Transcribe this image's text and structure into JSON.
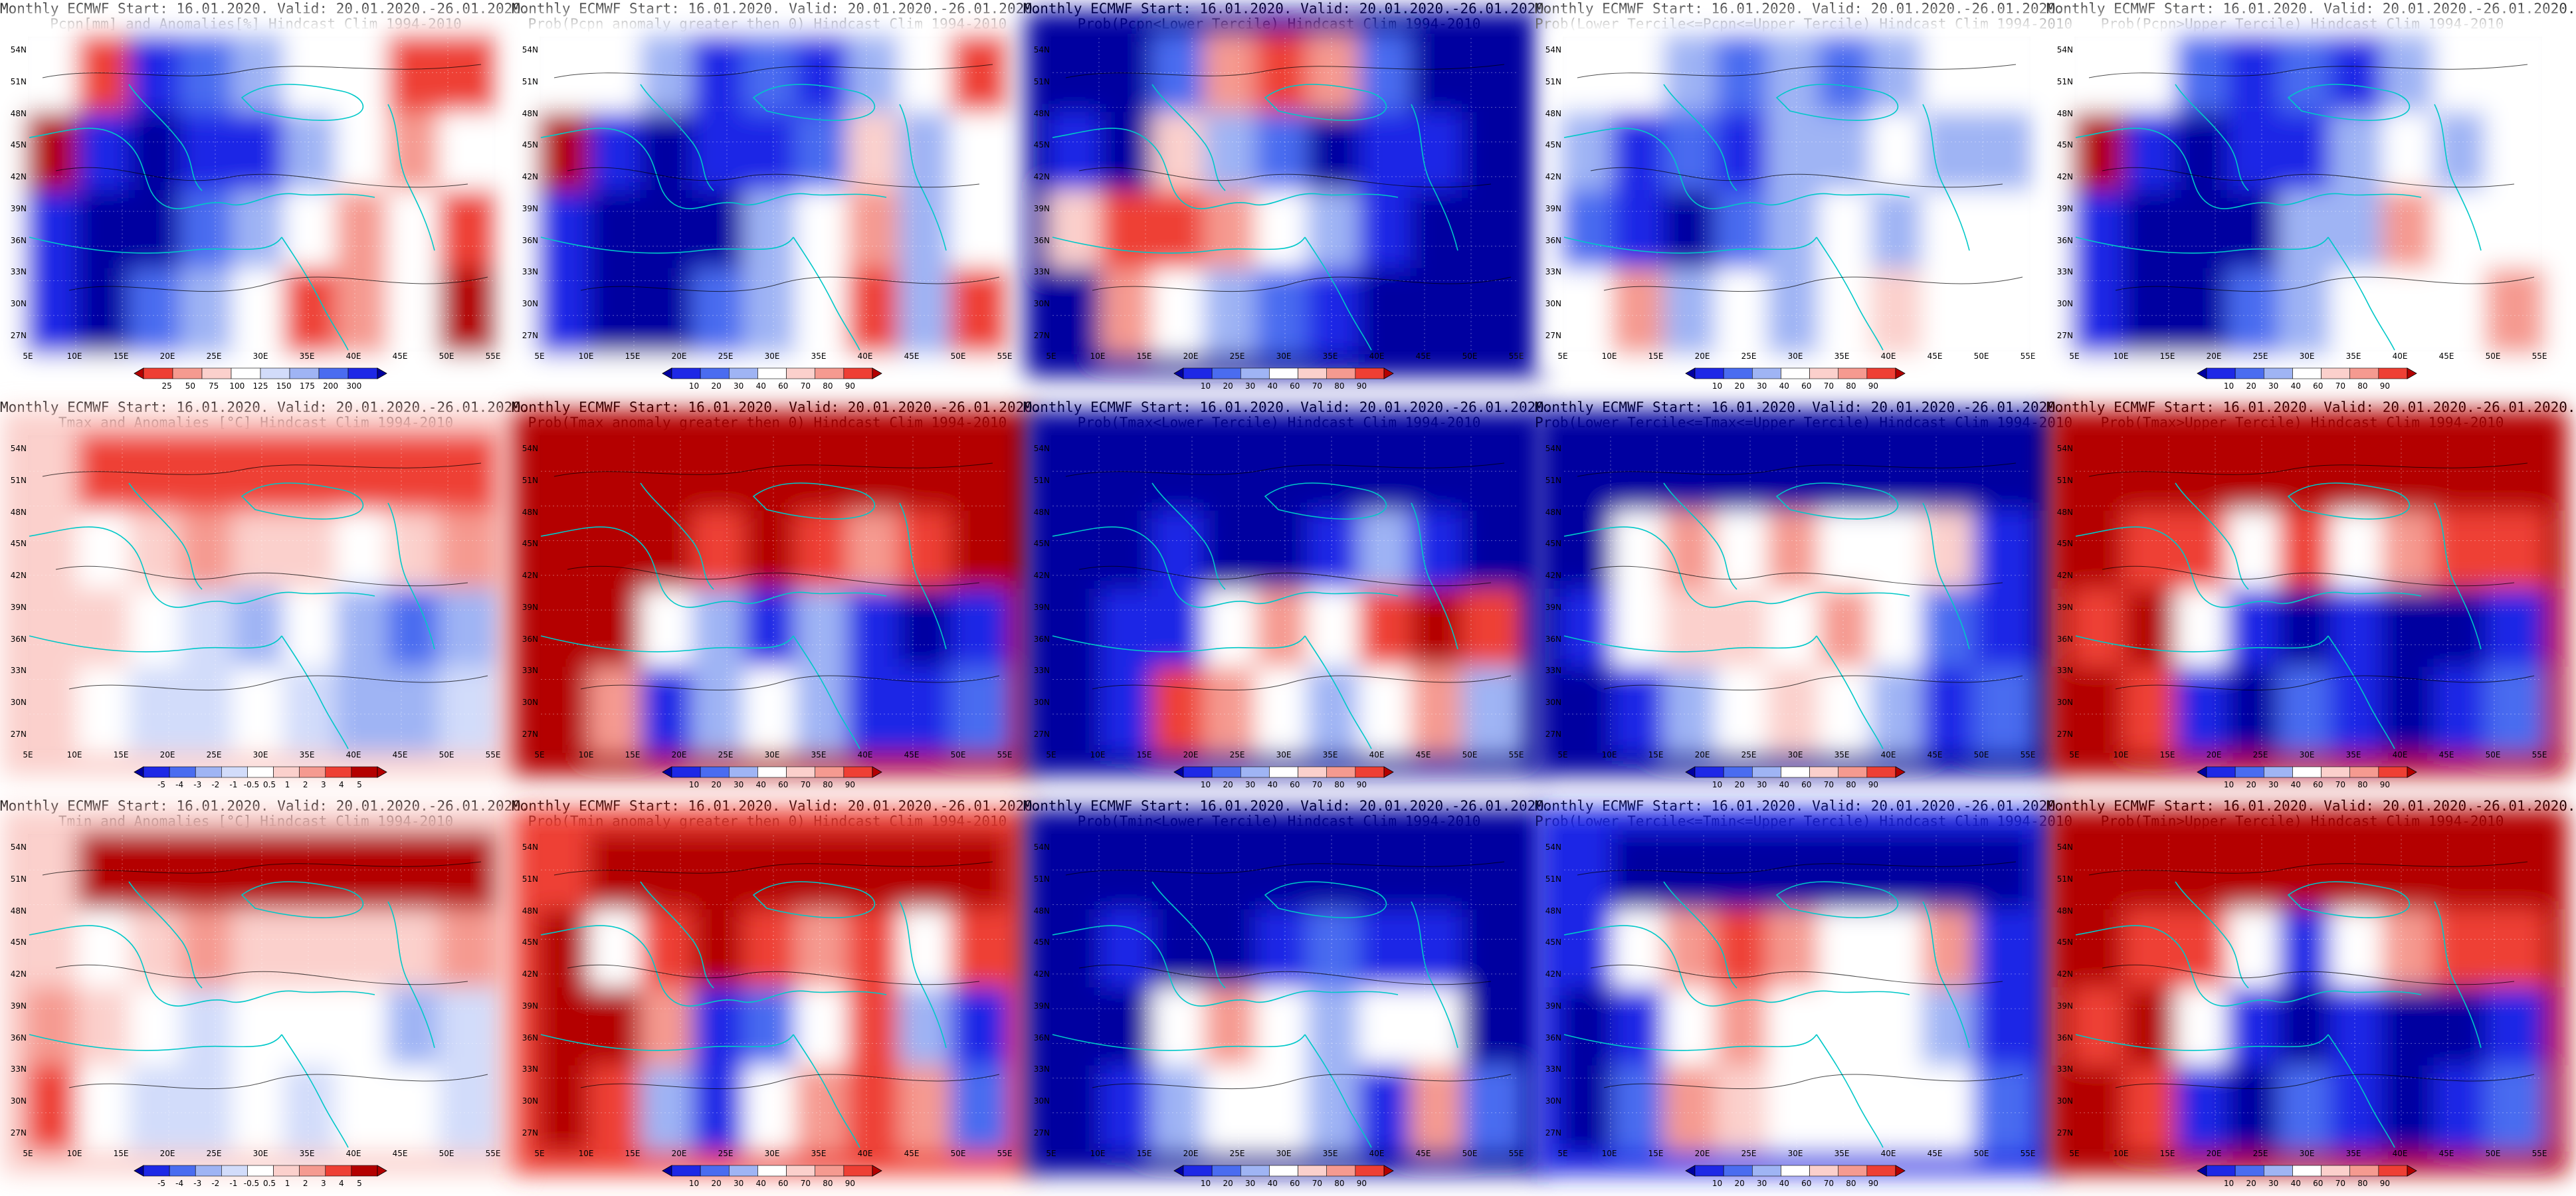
{
  "figure": {
    "columns": 5,
    "rows": 3,
    "lat_ticks": [
      "27N",
      "30N",
      "33N",
      "36N",
      "39N",
      "42N",
      "45N",
      "48N",
      "51N",
      "54N"
    ],
    "lon_ticks": [
      "5E",
      "10E",
      "15E",
      "20E",
      "25E",
      "30E",
      "35E",
      "40E",
      "45E",
      "50E",
      "55E"
    ],
    "colors": {
      "blue_dark": "#0000a0",
      "blue": "#1e28e6",
      "blue_mid": "#4a6cf0",
      "blue_light": "#9fb4f4",
      "blue_pale": "#d2dcfa",
      "white": "#ffffff",
      "red_pale": "#fbd0cc",
      "red_light": "#f59a90",
      "red": "#ee3f34",
      "red_dark": "#b40000",
      "coast": "#00c8c8",
      "contour": "#000000"
    }
  },
  "panels": [
    {
      "id": "pcpn-anom",
      "title1": "Monthly ECMWF Start: 16.01.2020. Valid: 20.01.2020.-26.01.2020.",
      "title2": "Pcpn[mm] and Anomalies[%] Hindcast Clim 1994-2010",
      "scheme": "anom_pcpn",
      "colorbar": [
        "25",
        "50",
        "75",
        "100",
        "125",
        "150",
        "175",
        "200",
        "300"
      ]
    },
    {
      "id": "pcpn-prob-gt0",
      "title1": "Monthly ECMWF Start: 16.01.2020. Valid: 20.01.2020.-26.01.2020.",
      "title2": "Prob(Pcpn anomaly greater then 0) Hindcast Clim 1994-2010",
      "scheme": "prob",
      "colorbar": [
        "10",
        "20",
        "30",
        "40",
        "60",
        "70",
        "80",
        "90"
      ]
    },
    {
      "id": "pcpn-prob-lower",
      "title1": "Monthly ECMWF Start: 16.01.2020. Valid: 20.01.2020.-26.01.2020.",
      "title2": "Prob(Pcpn<Lower Tercile) Hindcast Clim 1994-2010",
      "scheme": "prob",
      "colorbar": [
        "10",
        "20",
        "30",
        "40",
        "60",
        "70",
        "80",
        "90"
      ]
    },
    {
      "id": "pcpn-prob-middle",
      "title1": "Monthly ECMWF Start: 16.01.2020. Valid: 20.01.2020.-26.01.2020.",
      "title2": "Prob(Lower Tercile<=Pcpn<=Upper Tercile) Hindcast Clim 1994-2010",
      "scheme": "prob",
      "colorbar": [
        "10",
        "20",
        "30",
        "40",
        "60",
        "70",
        "80",
        "90"
      ]
    },
    {
      "id": "pcpn-prob-upper",
      "title1": "Monthly ECMWF Start: 16.01.2020. Valid: 20.01.2020.-26.01.2020.",
      "title2": "Prob(Pcpn>Upper Tercile) Hindcast Clim 1994-2010",
      "scheme": "prob",
      "colorbar": [
        "10",
        "20",
        "30",
        "40",
        "60",
        "70",
        "80",
        "90"
      ]
    },
    {
      "id": "tmax-anom",
      "title1": "Monthly ECMWF Start: 16.01.2020. Valid: 20.01.2020.-26.01.2020.",
      "title2": "Tmax and Anomalies [°C] Hindcast Clim 1994-2010",
      "scheme": "anom_temp",
      "colorbar": [
        "-5",
        "-4",
        "-3",
        "-2",
        "-1",
        "-0.5",
        "0.5",
        "1",
        "2",
        "3",
        "4",
        "5"
      ]
    },
    {
      "id": "tmax-prob-gt0",
      "title1": "Monthly ECMWF Start: 16.01.2020. Valid: 20.01.2020.-26.01.2020.",
      "title2": "Prob(Tmax anomaly greater then 0) Hindcast Clim 1994-2010",
      "scheme": "prob",
      "colorbar": [
        "10",
        "20",
        "30",
        "40",
        "60",
        "70",
        "80",
        "90"
      ]
    },
    {
      "id": "tmax-prob-lower",
      "title1": "Monthly ECMWF Start: 16.01.2020. Valid: 20.01.2020.-26.01.2020.",
      "title2": "Prob(Tmax<Lower Tercile) Hindcast Clim 1994-2010",
      "scheme": "prob",
      "colorbar": [
        "10",
        "20",
        "30",
        "40",
        "60",
        "70",
        "80",
        "90"
      ]
    },
    {
      "id": "tmax-prob-middle",
      "title1": "Monthly ECMWF Start: 16.01.2020. Valid: 20.01.2020.-26.01.2020.",
      "title2": "Prob(Lower Tercile<=Tmax<=Upper Tercile) Hindcast Clim 1994-2010",
      "scheme": "prob",
      "colorbar": [
        "10",
        "20",
        "30",
        "40",
        "60",
        "70",
        "80",
        "90"
      ]
    },
    {
      "id": "tmax-prob-upper",
      "title1": "Monthly ECMWF Start: 16.01.2020. Valid: 20.01.2020.-26.01.2020.",
      "title2": "Prob(Tmax>Upper Tercile) Hindcast Clim 1994-2010",
      "scheme": "prob",
      "colorbar": [
        "10",
        "20",
        "30",
        "40",
        "60",
        "70",
        "80",
        "90"
      ]
    },
    {
      "id": "tmin-anom",
      "title1": "Monthly ECMWF Start: 16.01.2020. Valid: 20.01.2020.-26.01.2020.",
      "title2": "Tmin and Anomalies [°C] Hindcast Clim 1994-2010",
      "scheme": "anom_temp",
      "colorbar": [
        "-5",
        "-4",
        "-3",
        "-2",
        "-1",
        "-0.5",
        "0.5",
        "1",
        "2",
        "3",
        "4",
        "5"
      ]
    },
    {
      "id": "tmin-prob-gt0",
      "title1": "Monthly ECMWF Start: 16.01.2020. Valid: 20.01.2020.-26.01.2020.",
      "title2": "Prob(Tmin anomaly greater then 0) Hindcast Clim 1994-2010",
      "scheme": "prob",
      "colorbar": [
        "10",
        "20",
        "30",
        "40",
        "60",
        "70",
        "80",
        "90"
      ]
    },
    {
      "id": "tmin-prob-lower",
      "title1": "Monthly ECMWF Start: 16.01.2020. Valid: 20.01.2020.-26.01.2020.",
      "title2": "Prob(Tmin<Lower Tercile) Hindcast Clim 1994-2010",
      "scheme": "prob",
      "colorbar": [
        "10",
        "20",
        "30",
        "40",
        "60",
        "70",
        "80",
        "90"
      ]
    },
    {
      "id": "tmin-prob-middle",
      "title1": "Monthly ECMWF Start: 16.01.2020. Valid: 20.01.2020.-26.01.2020.",
      "title2": "Prob(Lower Tercile<=Tmin<=Upper Tercile) Hindcast Clim 1994-2010",
      "scheme": "prob",
      "colorbar": [
        "10",
        "20",
        "30",
        "40",
        "60",
        "70",
        "80",
        "90"
      ]
    },
    {
      "id": "tmin-prob-upper",
      "title1": "Monthly ECMWF Start: 16.01.2020. Valid: 20.01.2020.-26.01.2020.",
      "title2": "Prob(Tmin>Upper Tercile) Hindcast Clim 1994-2010",
      "scheme": "prob",
      "colorbar": [
        "10",
        "20",
        "30",
        "40",
        "60",
        "70",
        "80",
        "90"
      ]
    }
  ],
  "fields": {
    "pcpn-anom": [
      [
        "white",
        "red",
        "blue",
        "blue_mid",
        "blue_light",
        "white",
        "white",
        "red",
        "red"
      ],
      [
        "red_dark",
        "blue",
        "blue_dark",
        "blue",
        "blue",
        "blue_light",
        "white",
        "red_light",
        "white"
      ],
      [
        "blue",
        "blue_dark",
        "blue_dark",
        "blue_mid",
        "blue_light",
        "white",
        "red_light",
        "white",
        "red"
      ],
      [
        "blue",
        "blue_dark",
        "blue_mid",
        "blue_light",
        "white",
        "red",
        "red_light",
        "white",
        "red_dark"
      ]
    ],
    "pcpn-prob-gt0": [
      [
        "white",
        "white",
        "blue_light",
        "blue",
        "blue_mid",
        "blue",
        "blue_light",
        "white",
        "red"
      ],
      [
        "red_dark",
        "blue",
        "blue_dark",
        "blue",
        "blue",
        "blue_mid",
        "red_pale",
        "blue_light",
        "white"
      ],
      [
        "blue",
        "blue_dark",
        "blue_dark",
        "blue_dark",
        "blue_light",
        "white",
        "red_light",
        "blue_light",
        "white"
      ],
      [
        "blue",
        "blue_dark",
        "blue_dark",
        "blue_mid",
        "blue_light",
        "white",
        "red",
        "blue_light",
        "red"
      ]
    ],
    "pcpn-prob-lower": [
      [
        "blue_dark",
        "blue_dark",
        "blue_mid",
        "red_light",
        "red",
        "red_light",
        "blue_mid",
        "blue_dark",
        "blue_dark"
      ],
      [
        "blue",
        "blue_dark",
        "red_pale",
        "blue_light",
        "blue_mid",
        "blue_dark",
        "blue",
        "blue",
        "blue_dark"
      ],
      [
        "red_pale",
        "red",
        "red",
        "red_light",
        "white",
        "blue_light",
        "blue",
        "blue_dark",
        "blue_dark"
      ],
      [
        "blue_dark",
        "red_light",
        "white",
        "blue_light",
        "blue_mid",
        "blue",
        "blue_dark",
        "blue_dark",
        "blue_dark"
      ]
    ],
    "pcpn-prob-middle": [
      [
        "white",
        "white",
        "blue_light",
        "blue_mid",
        "blue_light",
        "blue_mid",
        "blue_light",
        "white",
        "white"
      ],
      [
        "blue_light",
        "blue",
        "blue_mid",
        "blue",
        "blue_light",
        "blue_light",
        "white",
        "blue_light",
        "blue_light"
      ],
      [
        "blue_mid",
        "blue",
        "blue_dark",
        "blue_mid",
        "blue_light",
        "white",
        "blue_light",
        "white",
        "white"
      ],
      [
        "white",
        "red_light",
        "blue_light",
        "white",
        "blue_light",
        "white",
        "red_pale",
        "white",
        "white"
      ]
    ],
    "pcpn-prob-upper": [
      [
        "white",
        "white",
        "blue_mid",
        "blue",
        "blue_mid",
        "blue",
        "blue_light",
        "white",
        "white"
      ],
      [
        "red_dark",
        "blue",
        "blue_dark",
        "blue",
        "blue",
        "blue_light",
        "white",
        "blue_light",
        "white"
      ],
      [
        "blue",
        "blue_dark",
        "blue_dark",
        "blue_dark",
        "blue_light",
        "blue_light",
        "red_light",
        "white",
        "white"
      ],
      [
        "blue",
        "blue_dark",
        "blue_dark",
        "blue_mid",
        "blue_light",
        "white",
        "white",
        "white",
        "red_light"
      ]
    ],
    "tmax-anom": [
      [
        "red_pale",
        "red",
        "red",
        "red",
        "red",
        "red",
        "red",
        "red",
        "red"
      ],
      [
        "red_pale",
        "white",
        "red_pale",
        "red_light",
        "red_pale",
        "red_pale",
        "white",
        "red_pale",
        "red_light"
      ],
      [
        "red_pale",
        "red_pale",
        "white",
        "blue_pale",
        "blue_light",
        "white",
        "blue_light",
        "blue_mid",
        "blue_light"
      ],
      [
        "red_pale",
        "white",
        "blue_pale",
        "blue_pale",
        "white",
        "blue_pale",
        "blue_light",
        "blue_light",
        "blue_pale"
      ]
    ],
    "tmax-prob-gt0": [
      [
        "red_dark",
        "red_dark",
        "red_dark",
        "red_dark",
        "red_dark",
        "red_dark",
        "red_dark",
        "red_dark",
        "red_dark"
      ],
      [
        "red_dark",
        "red_dark",
        "red_dark",
        "red",
        "red_dark",
        "red",
        "red_light",
        "red",
        "red_dark"
      ],
      [
        "red_dark",
        "red_dark",
        "white",
        "blue_light",
        "blue",
        "blue_light",
        "blue",
        "blue_dark",
        "blue"
      ],
      [
        "red_dark",
        "red_light",
        "blue",
        "blue_light",
        "white",
        "blue_light",
        "blue",
        "blue",
        "blue_mid"
      ]
    ],
    "tmax-prob-lower": [
      [
        "blue_dark",
        "blue_dark",
        "blue_dark",
        "blue_dark",
        "blue_dark",
        "blue_dark",
        "blue_dark",
        "blue_dark",
        "blue_dark"
      ],
      [
        "blue_dark",
        "blue_dark",
        "blue",
        "blue_dark",
        "blue_dark",
        "blue",
        "blue_light",
        "blue",
        "blue_dark"
      ],
      [
        "blue_dark",
        "blue",
        "blue",
        "white",
        "red_light",
        "white",
        "red",
        "red_dark",
        "red"
      ],
      [
        "blue_dark",
        "blue",
        "red",
        "red_light",
        "white",
        "blue_light",
        "white",
        "red_light",
        "blue_light"
      ]
    ],
    "tmax-prob-middle": [
      [
        "blue_dark",
        "blue_dark",
        "blue_dark",
        "blue_dark",
        "blue_dark",
        "blue_dark",
        "blue_dark",
        "blue_dark",
        "blue_dark"
      ],
      [
        "blue_dark",
        "white",
        "red_light",
        "white",
        "red_light",
        "white",
        "white",
        "red_pale",
        "blue"
      ],
      [
        "blue",
        "white",
        "red_pale",
        "red_pale",
        "white",
        "red_light",
        "white",
        "blue_mid",
        "blue"
      ],
      [
        "blue_dark",
        "blue",
        "blue_light",
        "white",
        "red_pale",
        "white",
        "blue_light",
        "blue",
        "blue_mid"
      ]
    ],
    "tmax-prob-upper": [
      [
        "red_dark",
        "red_dark",
        "red_dark",
        "red_dark",
        "red_dark",
        "red_dark",
        "red_dark",
        "red_dark",
        "red_dark"
      ],
      [
        "red_dark",
        "red",
        "red",
        "white",
        "red",
        "white",
        "red_light",
        "red",
        "red"
      ],
      [
        "red",
        "red_dark",
        "white",
        "blue",
        "blue_dark",
        "blue",
        "blue_dark",
        "blue_dark",
        "blue"
      ],
      [
        "red_dark",
        "red",
        "blue",
        "blue_dark",
        "blue_mid",
        "blue",
        "blue_dark",
        "blue",
        "blue_mid"
      ]
    ],
    "tmin-anom": [
      [
        "red_pale",
        "red_dark",
        "red_dark",
        "red_dark",
        "red_dark",
        "red_dark",
        "red_dark",
        "red_dark",
        "red_dark"
      ],
      [
        "red_pale",
        "white",
        "red_pale",
        "red_light",
        "red_pale",
        "red_pale",
        "red_pale",
        "red_pale",
        "red_light"
      ],
      [
        "red_light",
        "red_pale",
        "white",
        "blue_pale",
        "white",
        "white",
        "white",
        "blue_light",
        "blue_pale"
      ],
      [
        "red",
        "white",
        "blue_pale",
        "blue_pale",
        "white",
        "blue_pale",
        "white",
        "white",
        "blue_pale"
      ]
    ],
    "tmin-prob-gt0": [
      [
        "red",
        "red_dark",
        "red_dark",
        "red_dark",
        "red_dark",
        "red_dark",
        "red_dark",
        "red_dark",
        "red_dark"
      ],
      [
        "red_dark",
        "white",
        "red",
        "red_dark",
        "red",
        "red_light",
        "red",
        "white",
        "red"
      ],
      [
        "red_dark",
        "red_dark",
        "red_light",
        "blue",
        "blue_mid",
        "white",
        "red",
        "blue_light",
        "blue"
      ],
      [
        "red_dark",
        "red",
        "blue_light",
        "blue",
        "white",
        "red_light",
        "red",
        "red_light",
        "blue_mid"
      ]
    ],
    "tmin-prob-lower": [
      [
        "blue_dark",
        "blue_dark",
        "blue_dark",
        "blue_dark",
        "blue_dark",
        "blue_dark",
        "blue_dark",
        "blue_dark",
        "blue_dark"
      ],
      [
        "blue_dark",
        "blue",
        "blue_dark",
        "blue_dark",
        "blue",
        "blue_mid",
        "blue",
        "blue",
        "blue_dark"
      ],
      [
        "blue_dark",
        "blue_dark",
        "white",
        "red_light",
        "white",
        "blue_light",
        "white",
        "white",
        "blue_dark"
      ],
      [
        "blue_dark",
        "blue",
        "blue_light",
        "white",
        "white",
        "blue_light",
        "blue",
        "red_light",
        "blue_mid"
      ]
    ],
    "tmin-prob-middle": [
      [
        "blue",
        "blue_dark",
        "blue_dark",
        "blue_dark",
        "blue_dark",
        "blue_dark",
        "blue_dark",
        "blue_dark",
        "blue_dark"
      ],
      [
        "blue",
        "white",
        "red_light",
        "red",
        "red_light",
        "white",
        "white",
        "red_light",
        "blue"
      ],
      [
        "blue_dark",
        "blue",
        "white",
        "red_light",
        "white",
        "white",
        "white",
        "blue_light",
        "blue"
      ],
      [
        "blue_dark",
        "blue_mid",
        "red_light",
        "red_pale",
        "white",
        "white",
        "white",
        "white",
        "blue_mid"
      ]
    ],
    "tmin-prob-upper": [
      [
        "red_dark",
        "red_dark",
        "red_dark",
        "red_dark",
        "red_dark",
        "red_dark",
        "red_dark",
        "red_dark",
        "red_dark"
      ],
      [
        "red_dark",
        "red",
        "red",
        "white",
        "blue",
        "white",
        "red_light",
        "red",
        "red"
      ],
      [
        "red",
        "red_dark",
        "white",
        "blue",
        "blue_dark",
        "blue",
        "blue_dark",
        "blue_dark",
        "blue"
      ],
      [
        "red_dark",
        "red",
        "blue",
        "blue_dark",
        "blue_mid",
        "blue",
        "blue_dark",
        "blue",
        "blue_mid"
      ]
    ]
  },
  "colorbar_palettes": {
    "anom_pcpn": [
      "red_dark",
      "red",
      "red_light",
      "red_pale",
      "white",
      "blue_pale",
      "blue_light",
      "blue_mid",
      "blue",
      "blue_dark"
    ],
    "anom_temp": [
      "blue_dark",
      "blue",
      "blue_mid",
      "blue_light",
      "blue_pale",
      "white",
      "red_pale",
      "red_light",
      "red",
      "red_dark",
      "red_dark"
    ],
    "prob": [
      "blue_dark",
      "blue",
      "blue_mid",
      "blue_light",
      "white",
      "red_pale",
      "red_light",
      "red",
      "red_dark"
    ]
  }
}
